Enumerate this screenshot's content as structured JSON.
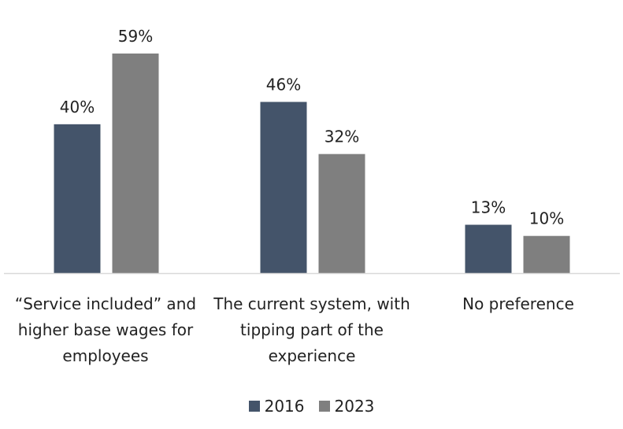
{
  "chart_data": {
    "type": "bar",
    "title": "",
    "xlabel": "",
    "ylabel": "",
    "ylim": [
      0,
      60
    ],
    "grid": false,
    "legend_position": "bottom",
    "categories": [
      "“Service included” and higher base wages for employees",
      "The current system, with tipping part of the experience",
      "No preference"
    ],
    "series": [
      {
        "name": "2016",
        "color": "#44546a",
        "values": [
          40,
          46,
          13
        ],
        "labels": [
          "40%",
          "46%",
          "13%"
        ]
      },
      {
        "name": "2023",
        "color": "#7f7f7f",
        "values": [
          59,
          32,
          10
        ],
        "labels": [
          "59%",
          "32%",
          "10%"
        ]
      }
    ],
    "axis_color": "#d9d9d9"
  }
}
